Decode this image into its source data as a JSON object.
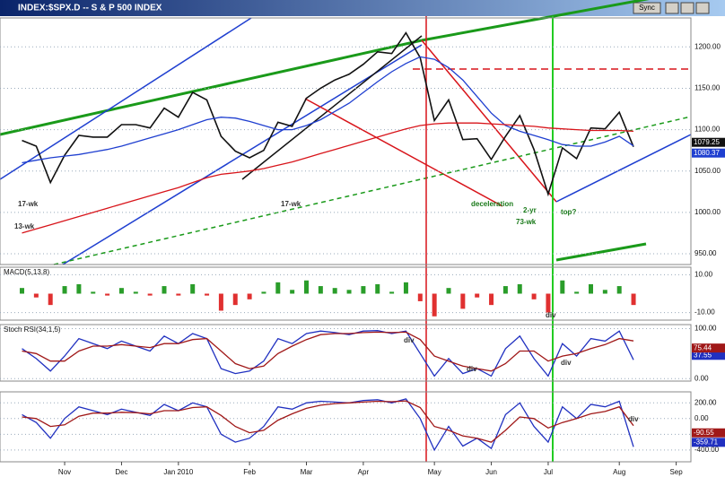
{
  "window": {
    "title": "INDEX:$SPX.D -- S & P 500 INDEX",
    "sync": "Sync"
  },
  "chart_data": [
    {
      "type": "line",
      "categories": [
        null,
        null,
        null,
        "Nov",
        null,
        null,
        null,
        "Dec",
        null,
        null,
        null,
        "Jan 2010",
        null,
        null,
        null,
        null,
        "Feb",
        null,
        null,
        null,
        "Mar",
        null,
        null,
        null,
        "Apr",
        null,
        null,
        null,
        null,
        "May",
        null,
        null,
        null,
        "Jun",
        null,
        null,
        null,
        "Jul",
        null,
        null,
        null,
        null,
        "Aug",
        null,
        null,
        null,
        "Sep"
      ],
      "ylim": [
        937,
        1235
      ],
      "yticks": [
        {
          "value": 950,
          "label": "950.00"
        },
        {
          "value": 1000,
          "label": "1000.00"
        },
        {
          "value": 1050,
          "label": "1050.00"
        },
        {
          "value": 1100,
          "label": "1100.00"
        },
        {
          "value": 1150,
          "label": "1150.00"
        },
        {
          "value": 1200,
          "label": "1200.00"
        }
      ],
      "series": [
        {
          "name": "SPX",
          "color": "#111111",
          "values": [
            1087,
            1080,
            1036,
            1069,
            1093,
            1091,
            1091,
            1106,
            1106,
            1102,
            1126,
            1115,
            1145,
            1136,
            1092,
            1074,
            1066,
            1075,
            1109,
            1104,
            1138,
            1150,
            1160,
            1167,
            1179,
            1194,
            1192,
            1217,
            1187,
            1111,
            1136,
            1088,
            1089,
            1064,
            1092,
            1117,
            1076,
            1022,
            1078,
            1065,
            1102,
            1101,
            1121,
            1079.25,
            null,
            null,
            null
          ],
          "value_labels": [
            null,
            null,
            null,
            null,
            null,
            null,
            null,
            null,
            null,
            null,
            null,
            null,
            null,
            null,
            null,
            null,
            null,
            null,
            null,
            null,
            null,
            null,
            null,
            null,
            null,
            null,
            null,
            null,
            null,
            null,
            null,
            null,
            null,
            null,
            null,
            null,
            null,
            null,
            null,
            null,
            null,
            null,
            null,
            "1079.25",
            null,
            null,
            null
          ]
        },
        {
          "name": "MA50",
          "color": "#1f3fd0",
          "values": [
            1060,
            1063,
            1066,
            1068,
            1070,
            1073,
            1076,
            1080,
            1085,
            1090,
            1095,
            1100,
            1106,
            1112,
            1115,
            1114,
            1110,
            1105,
            1100,
            1100,
            1105,
            1112,
            1122,
            1132,
            1145,
            1158,
            1170,
            1180,
            1188,
            1185,
            1175,
            1160,
            1140,
            1120,
            1105,
            1098,
            1093,
            1088,
            1082,
            1080,
            1080,
            1085,
            1092,
            1080.37,
            null,
            null,
            null
          ],
          "value_labels": [
            null,
            null,
            null,
            null,
            null,
            null,
            null,
            null,
            null,
            null,
            null,
            null,
            null,
            null,
            null,
            null,
            null,
            null,
            null,
            null,
            null,
            null,
            null,
            null,
            null,
            null,
            null,
            null,
            null,
            null,
            null,
            null,
            null,
            null,
            null,
            null,
            null,
            null,
            null,
            null,
            null,
            null,
            null,
            "1080.37",
            null,
            null,
            null
          ]
        },
        {
          "name": "MA200",
          "color": "#d8141a",
          "values": [
            975,
            980,
            985,
            990,
            995,
            1000,
            1005,
            1010,
            1015,
            1020,
            1025,
            1030,
            1036,
            1042,
            1046,
            1048,
            1050,
            1053,
            1057,
            1061,
            1066,
            1071,
            1076,
            1081,
            1086,
            1091,
            1096,
            1101,
            1105,
            1107,
            1108,
            1108,
            1108,
            1107,
            1106,
            1105,
            1104,
            1102,
            1101,
            1100,
            1099,
            1099,
            1099,
            1098,
            null,
            null,
            null
          ]
        }
      ],
      "annotations": [
        "13-wk",
        "17-wk",
        "17-wk",
        "deceleration",
        "2-yr",
        "73-wk",
        "top?"
      ]
    },
    {
      "type": "bar",
      "title": "MACD(5,13,8)",
      "ylim": [
        -14,
        14
      ],
      "yticks": [
        {
          "value": 10,
          "label": "10.00"
        },
        {
          "value": -10,
          "label": "-10.00"
        }
      ],
      "colors": {
        "up": "#2a9d2a",
        "down": "#e03030"
      },
      "values": [
        3,
        -2,
        -6,
        4,
        5,
        1,
        -1,
        3,
        1,
        -1,
        4,
        -1,
        5,
        -1,
        -9,
        -6,
        -3,
        1,
        6,
        2,
        7,
        4,
        3,
        2,
        4,
        5,
        1,
        6,
        -4,
        -12,
        3,
        -8,
        -2,
        -6,
        4,
        5,
        -3,
        -10,
        7,
        1,
        5,
        2,
        4,
        -6,
        null,
        null,
        null
      ],
      "annotations": [
        "div"
      ]
    },
    {
      "type": "line",
      "title": "Stoch RSI(34,1,5)",
      "ylim": [
        -5,
        108
      ],
      "yticks": [
        {
          "value": 100,
          "label": "100.00"
        },
        {
          "value": 0,
          "label": "0.00"
        }
      ],
      "series": [
        {
          "name": "%K",
          "color": "#2030c0",
          "values": [
            60,
            40,
            15,
            45,
            80,
            70,
            60,
            75,
            65,
            55,
            85,
            70,
            90,
            80,
            20,
            10,
            15,
            35,
            80,
            70,
            90,
            95,
            92,
            88,
            95,
            96,
            90,
            95,
            50,
            5,
            40,
            10,
            20,
            5,
            60,
            85,
            40,
            5,
            70,
            45,
            80,
            75,
            95,
            37.55,
            null,
            null,
            null
          ],
          "value_labels": [
            null,
            null,
            null,
            null,
            null,
            null,
            null,
            null,
            null,
            null,
            null,
            null,
            null,
            null,
            null,
            null,
            null,
            null,
            null,
            null,
            null,
            null,
            null,
            null,
            null,
            null,
            null,
            null,
            null,
            null,
            null,
            null,
            null,
            null,
            null,
            null,
            null,
            null,
            null,
            null,
            null,
            null,
            null,
            "37.55",
            null,
            null,
            null
          ]
        },
        {
          "name": "%D",
          "color": "#a01818",
          "values": [
            55,
            50,
            35,
            35,
            55,
            65,
            65,
            68,
            65,
            62,
            70,
            70,
            78,
            80,
            55,
            30,
            20,
            25,
            50,
            65,
            78,
            88,
            90,
            90,
            92,
            93,
            92,
            93,
            78,
            45,
            35,
            25,
            20,
            15,
            30,
            55,
            55,
            35,
            45,
            50,
            60,
            68,
            80,
            75.44,
            null,
            null,
            null
          ],
          "value_labels": [
            null,
            null,
            null,
            null,
            null,
            null,
            null,
            null,
            null,
            null,
            null,
            null,
            null,
            null,
            null,
            null,
            null,
            null,
            null,
            null,
            null,
            null,
            null,
            null,
            null,
            null,
            null,
            null,
            null,
            null,
            null,
            null,
            null,
            null,
            null,
            null,
            null,
            null,
            null,
            null,
            null,
            null,
            null,
            "75.44",
            null,
            null,
            null
          ]
        }
      ],
      "annotations": [
        "div",
        "div",
        "div"
      ]
    },
    {
      "type": "line",
      "ylim": [
        -550,
        340
      ],
      "yticks": [
        {
          "value": 200,
          "label": "200.00"
        },
        {
          "value": 0,
          "label": "0.00"
        },
        {
          "value": -200,
          "label": "-200.00"
        },
        {
          "value": -400,
          "label": "-400.00"
        }
      ],
      "series": [
        {
          "name": "CCI",
          "color": "#2030c0",
          "values": [
            50,
            -50,
            -250,
            0,
            150,
            100,
            50,
            120,
            80,
            40,
            180,
            100,
            200,
            150,
            -200,
            -300,
            -250,
            -100,
            150,
            120,
            200,
            220,
            210,
            200,
            230,
            240,
            200,
            250,
            0,
            -400,
            -100,
            -350,
            -250,
            -380,
            50,
            200,
            -100,
            -300,
            150,
            0,
            180,
            150,
            220,
            -359.71,
            null,
            null,
            null
          ],
          "value_labels": [
            null,
            null,
            null,
            null,
            null,
            null,
            null,
            null,
            null,
            null,
            null,
            null,
            null,
            null,
            null,
            null,
            null,
            null,
            null,
            null,
            null,
            null,
            null,
            null,
            null,
            null,
            null,
            null,
            null,
            null,
            null,
            null,
            null,
            null,
            null,
            null,
            null,
            null,
            null,
            null,
            null,
            null,
            null,
            "-359.71",
            null,
            null,
            null
          ]
        },
        {
          "name": "CCI avg",
          "color": "#a01818",
          "values": [
            20,
            0,
            -100,
            -80,
            30,
            70,
            70,
            80,
            75,
            60,
            100,
            100,
            140,
            150,
            40,
            -100,
            -180,
            -150,
            -20,
            60,
            130,
            170,
            190,
            200,
            210,
            220,
            215,
            225,
            140,
            -100,
            -150,
            -220,
            -250,
            -300,
            -150,
            20,
            0,
            -120,
            -50,
            0,
            60,
            90,
            150,
            -90.55,
            null,
            null,
            null
          ],
          "value_labels": [
            null,
            null,
            null,
            null,
            null,
            null,
            null,
            null,
            null,
            null,
            null,
            null,
            null,
            null,
            null,
            null,
            null,
            null,
            null,
            null,
            null,
            null,
            null,
            null,
            null,
            null,
            null,
            null,
            null,
            null,
            null,
            null,
            null,
            null,
            null,
            null,
            null,
            null,
            null,
            null,
            null,
            null,
            null,
            "-90.55",
            null,
            null,
            null
          ]
        }
      ],
      "annotations": [
        "div"
      ]
    }
  ]
}
